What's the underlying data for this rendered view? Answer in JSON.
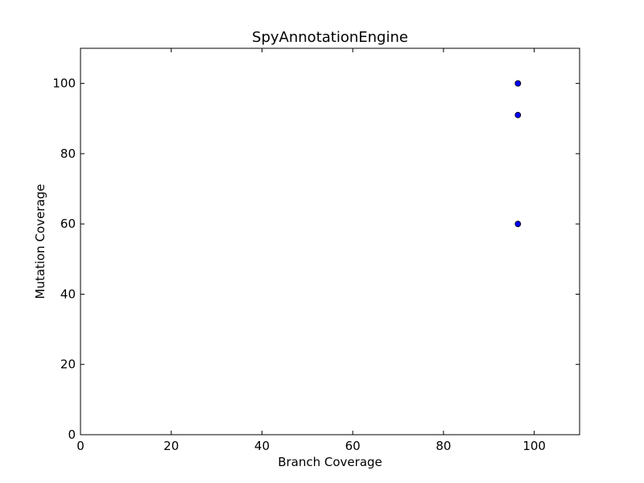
{
  "chart_data": {
    "type": "scatter",
    "title": "SpyAnnotationEngine",
    "xlabel": "Branch Coverage",
    "ylabel": "Mutation Coverage",
    "xlim": [
      0,
      110
    ],
    "ylim": [
      0,
      110
    ],
    "x_ticks": [
      0,
      20,
      40,
      60,
      80,
      100
    ],
    "y_ticks": [
      0,
      20,
      40,
      60,
      80,
      100
    ],
    "grid": false,
    "marker_color": "#0000ff",
    "points": [
      {
        "x": 96.4,
        "y": 100
      },
      {
        "x": 96.4,
        "y": 100
      },
      {
        "x": 96.4,
        "y": 91
      },
      {
        "x": 96.4,
        "y": 60
      }
    ]
  }
}
